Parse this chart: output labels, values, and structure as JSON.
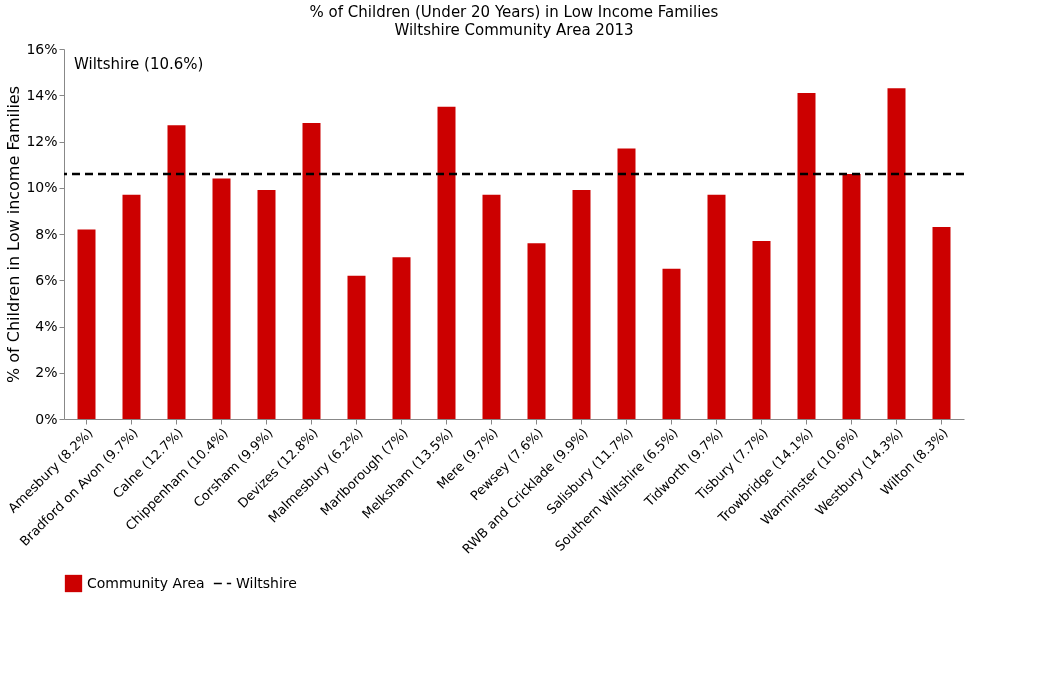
{
  "chart_data": {
    "type": "bar",
    "title": "% of Children (Under 20 Years) in Low Income Families",
    "subtitle": "Wiltshire Community Area 2013",
    "ylabel": "% of Children in Low income Families",
    "categories": [
      "Amesbury (8.2%)",
      "Bradford on Avon (9.7%)",
      "Calne (12.7%)",
      "Chippenham (10.4%)",
      "Corsham (9.9%)",
      "Devizes (12.8%)",
      "Malmesbury (6.2%)",
      "Marlborough (7%)",
      "Melksham (13.5%)",
      "Mere (9.7%)",
      "Pewsey (7.6%)",
      "RWB and Cricklade (9.9%)",
      "Salisbury (11.7%)",
      "Southern Wiltshire (6.5%)",
      "Tidworth (9.7%)",
      "Tisbury (7.7%)",
      "Trowbridge (14.1%)",
      "Warminster (10.6%)",
      "Westbury (14.3%)",
      "Wilton (8.3%)"
    ],
    "series": [
      {
        "name": "Community Area",
        "color": "#cc0000",
        "values": [
          8.2,
          9.7,
          12.7,
          10.4,
          9.9,
          12.8,
          6.2,
          7,
          13.5,
          9.7,
          7.6,
          9.9,
          11.7,
          6.5,
          9.7,
          7.7,
          14.1,
          10.6,
          14.3,
          8.3
        ]
      }
    ],
    "ylim": [
      0,
      16
    ],
    "yticks": [
      {
        "value": 0,
        "label": "0%"
      },
      {
        "value": 2,
        "label": "2%"
      },
      {
        "value": 4,
        "label": "4%"
      },
      {
        "value": 6,
        "label": "6%"
      },
      {
        "value": 8,
        "label": "8%"
      },
      {
        "value": 10,
        "label": "10%"
      },
      {
        "value": 12,
        "label": "12%"
      },
      {
        "value": 14,
        "label": "14%"
      },
      {
        "value": 16,
        "label": "16%"
      }
    ],
    "ref_lines": [
      {
        "axis": "y",
        "value": 10.6,
        "label": "Wiltshire",
        "color": "#000000",
        "line_style": "dashed"
      }
    ],
    "annotations": [
      "Wiltshire (10.6%)"
    ],
    "grid": false,
    "legend": "bottom"
  }
}
